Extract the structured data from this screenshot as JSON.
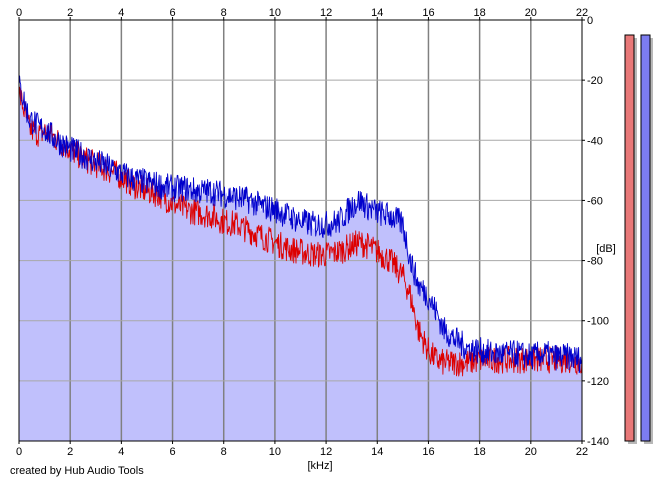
{
  "chart_data": {
    "type": "area",
    "xlabel": "[kHz]",
    "ylabel": "[dB]",
    "xlim": [
      0,
      22
    ],
    "ylim": [
      -140,
      0
    ],
    "x_ticks": [
      0,
      2,
      4,
      6,
      8,
      10,
      12,
      14,
      16,
      18,
      20,
      22
    ],
    "y_ticks": [
      0,
      -20,
      -40,
      -60,
      -80,
      -100,
      -120,
      -140
    ],
    "x_tick_labels": [
      "0",
      "2",
      "4",
      "6",
      "8",
      "10",
      "12",
      "14",
      "16",
      "18",
      "20",
      "22"
    ],
    "y_tick_labels": [
      "0",
      "-20",
      "-40",
      "-60",
      "-80",
      "-100",
      "-120",
      "-140"
    ],
    "grid": true,
    "series": [
      {
        "color": "#0000cc",
        "x": [
          0,
          0.1,
          0.2,
          0.4,
          0.6,
          0.8,
          1.0,
          1.2,
          1.5,
          2.0,
          2.5,
          3.0,
          3.5,
          4.0,
          4.5,
          5.0,
          5.5,
          6.0,
          6.5,
          7.0,
          7.5,
          8.0,
          8.5,
          9.0,
          9.5,
          10.0,
          10.5,
          11.0,
          11.5,
          12.0,
          12.5,
          13.0,
          13.3,
          13.6,
          14.0,
          14.5,
          15.0,
          15.3,
          15.6,
          16.0,
          16.3,
          16.6,
          17.0,
          17.5,
          18.0,
          18.5,
          19.0,
          19.5,
          20.0,
          20.5,
          21.0,
          21.5,
          22.0
        ],
        "values": [
          -22,
          -24,
          -27,
          -33,
          -34,
          -36,
          -36,
          -38,
          -40,
          -43,
          -45,
          -47,
          -49,
          -51,
          -53,
          -54,
          -55,
          -56,
          -56,
          -57,
          -57,
          -58,
          -59,
          -60,
          -62,
          -63,
          -65,
          -67,
          -68,
          -68,
          -67,
          -62,
          -60,
          -62,
          -64,
          -65,
          -68,
          -80,
          -88,
          -92,
          -97,
          -103,
          -106,
          -109,
          -110,
          -111,
          -111,
          -111,
          -112,
          -111,
          -112,
          -112,
          -113
        ]
      },
      {
        "color": "#dd0000",
        "x": [
          0,
          0.1,
          0.2,
          0.4,
          0.6,
          0.8,
          1.0,
          1.2,
          1.5,
          2.0,
          2.5,
          3.0,
          3.5,
          4.0,
          4.5,
          5.0,
          5.5,
          6.0,
          6.5,
          7.0,
          7.5,
          8.0,
          8.5,
          9.0,
          9.5,
          10.0,
          10.5,
          11.0,
          11.5,
          12.0,
          12.5,
          13.0,
          13.3,
          13.6,
          14.0,
          14.5,
          15.0,
          15.3,
          15.6,
          16.0,
          16.3,
          16.6,
          17.0,
          17.5,
          18.0,
          18.5,
          19.0,
          19.5,
          20.0,
          20.5,
          21.0,
          21.5,
          22.0
        ],
        "values": [
          -24,
          -27,
          -30,
          -36,
          -37,
          -38,
          -37,
          -38,
          -40,
          -43,
          -46,
          -48,
          -50,
          -52,
          -55,
          -57,
          -58,
          -61,
          -63,
          -64,
          -65,
          -67,
          -68,
          -70,
          -72,
          -74,
          -76,
          -77,
          -78,
          -78,
          -77,
          -75,
          -74,
          -75,
          -77,
          -80,
          -85,
          -92,
          -103,
          -110,
          -113,
          -114,
          -114,
          -114,
          -113,
          -113,
          -113,
          -113,
          -113,
          -113,
          -113,
          -113,
          -114
        ]
      }
    ],
    "level_meters": [
      {
        "color": "#e87878",
        "value": -5
      },
      {
        "color": "#7c7cf0",
        "value": -5
      }
    ],
    "footer": "created by Hub Audio Tools"
  }
}
